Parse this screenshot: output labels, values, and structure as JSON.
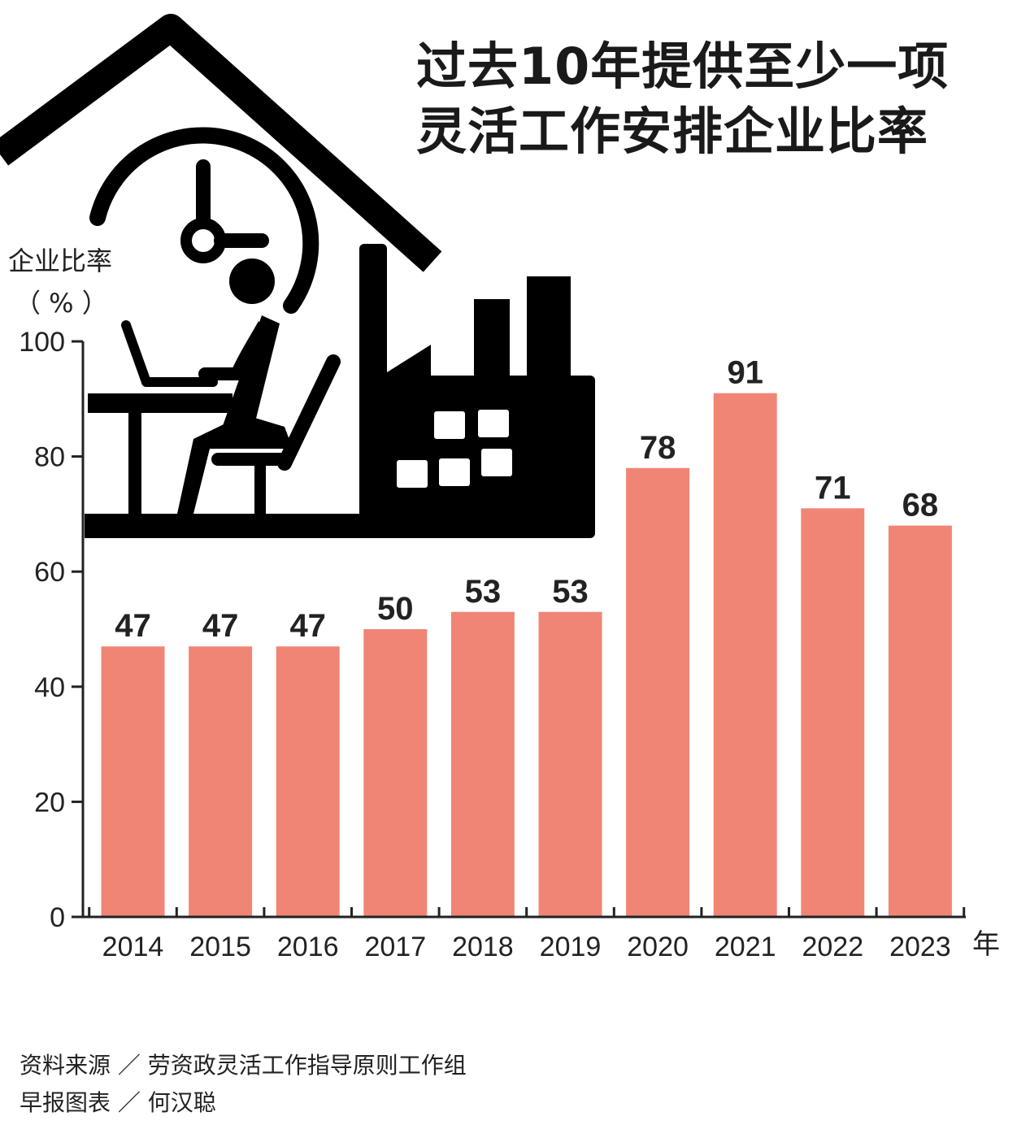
{
  "title": {
    "line1": "过去10年提供至少一项",
    "line2": "灵活工作安排企业比率"
  },
  "axis": {
    "y_title_line1": "企业比率",
    "y_title_line2": "（ % ）",
    "x_unit": "年"
  },
  "footer": {
    "source": "资料来源 ／ 劳资政灵活工作指导原则工作组",
    "credit": "早报图表 ／ 何汉聪"
  },
  "colors": {
    "bar": "#f08576",
    "axis": "#222222",
    "illustration": "#000000"
  },
  "illustration": {
    "icon": "remote-work-house-factory-icon"
  },
  "chart_data": {
    "type": "bar",
    "categories": [
      "2014",
      "2015",
      "2016",
      "2017",
      "2018",
      "2019",
      "2020",
      "2021",
      "2022",
      "2023"
    ],
    "values": [
      47,
      47,
      47,
      50,
      53,
      53,
      78,
      91,
      71,
      68
    ],
    "ylim": [
      0,
      100
    ],
    "yticks": [
      0,
      20,
      40,
      60,
      80,
      100
    ],
    "ylabel": "企业比率（ % ）",
    "xlabel": "年",
    "grid": false,
    "legend": "none"
  }
}
